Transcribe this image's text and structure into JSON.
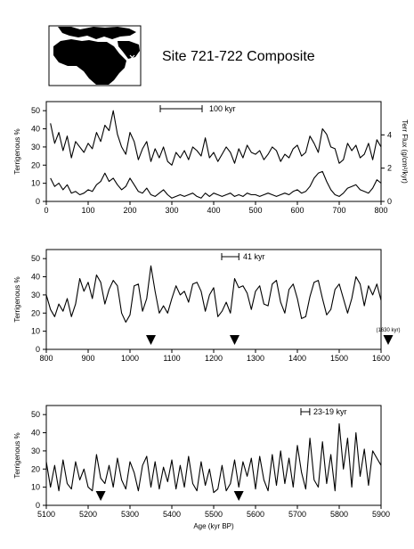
{
  "title": "Site 721-722 Composite",
  "map": {
    "icon": "africa-arabia-map-icon"
  },
  "colors": {
    "line": "#000000",
    "land": "#000000",
    "background": "#ffffff"
  },
  "chart_data": [
    {
      "type": "line",
      "ylabel": "Terrigenous %",
      "y2label": "Terr Flux (g/cm²/kyr)",
      "xlim": [
        0,
        800
      ],
      "ylim": [
        0,
        55
      ],
      "y2lim": [
        0,
        6
      ],
      "xticks": [
        0,
        100,
        200,
        300,
        400,
        500,
        600,
        700,
        800
      ],
      "yticks": [
        0,
        10,
        20,
        30,
        40,
        50
      ],
      "y2ticks": [
        0,
        2,
        4
      ],
      "scalebar": {
        "label": "100 kyr",
        "length": 100
      },
      "series": [
        {
          "axis": "left",
          "x": [
            10,
            20,
            30,
            40,
            50,
            60,
            70,
            80,
            90,
            100,
            110,
            120,
            130,
            140,
            150,
            160,
            170,
            180,
            190,
            200,
            210,
            220,
            230,
            240,
            250,
            260,
            270,
            280,
            290,
            300,
            310,
            320,
            330,
            340,
            350,
            360,
            370,
            380,
            390,
            400,
            410,
            420,
            430,
            440,
            450,
            460,
            470,
            480,
            490,
            500,
            510,
            520,
            530,
            540,
            550,
            560,
            570,
            580,
            590,
            600,
            610,
            620,
            630,
            640,
            650,
            660,
            670,
            680,
            690,
            700,
            710,
            720,
            730,
            740,
            750,
            760,
            770,
            780,
            790,
            800
          ],
          "y": [
            43,
            32,
            38,
            28,
            36,
            24,
            33,
            30,
            27,
            32,
            29,
            38,
            33,
            42,
            39,
            50,
            37,
            30,
            26,
            38,
            33,
            23,
            29,
            33,
            22,
            29,
            24,
            30,
            22,
            20,
            27,
            24,
            28,
            23,
            30,
            28,
            25,
            35,
            24,
            27,
            22,
            26,
            30,
            27,
            21,
            29,
            24,
            31,
            27,
            26,
            28,
            23,
            26,
            30,
            28,
            22,
            26,
            24,
            29,
            31,
            25,
            27,
            36,
            32,
            27,
            40,
            37,
            30,
            29,
            21,
            23,
            32,
            28,
            31,
            24,
            26,
            32,
            23,
            34,
            30
          ]
        },
        {
          "axis": "right",
          "x": [
            10,
            20,
            30,
            40,
            50,
            60,
            70,
            80,
            90,
            100,
            110,
            120,
            130,
            140,
            150,
            160,
            170,
            180,
            190,
            200,
            210,
            220,
            230,
            240,
            250,
            260,
            270,
            280,
            290,
            300,
            310,
            320,
            330,
            340,
            350,
            360,
            370,
            380,
            390,
            400,
            410,
            420,
            430,
            440,
            450,
            460,
            470,
            480,
            490,
            500,
            510,
            520,
            530,
            540,
            550,
            560,
            570,
            580,
            590,
            600,
            610,
            620,
            630,
            640,
            650,
            660,
            670,
            680,
            690,
            700,
            710,
            720,
            730,
            740,
            750,
            760,
            770,
            780,
            790,
            800
          ],
          "y": [
            1.4,
            0.9,
            1.1,
            0.7,
            1.0,
            0.5,
            0.6,
            0.4,
            0.5,
            0.7,
            0.6,
            1.0,
            1.2,
            1.7,
            1.2,
            1.4,
            1.0,
            0.7,
            0.9,
            1.4,
            1.0,
            0.6,
            0.5,
            0.8,
            0.4,
            0.3,
            0.5,
            0.7,
            0.4,
            0.2,
            0.3,
            0.4,
            0.3,
            0.4,
            0.5,
            0.3,
            0.2,
            0.5,
            0.3,
            0.5,
            0.4,
            0.3,
            0.4,
            0.5,
            0.3,
            0.4,
            0.3,
            0.5,
            0.4,
            0.4,
            0.3,
            0.4,
            0.5,
            0.4,
            0.3,
            0.4,
            0.5,
            0.4,
            0.6,
            0.7,
            0.5,
            0.6,
            0.9,
            1.4,
            1.7,
            1.8,
            1.2,
            0.7,
            0.4,
            0.3,
            0.5,
            0.8,
            0.9,
            1.0,
            0.7,
            0.6,
            0.5,
            0.8,
            1.3,
            1.1
          ]
        }
      ]
    },
    {
      "type": "line",
      "ylabel": "Terrigenous %",
      "xlim": [
        800,
        1600
      ],
      "ylim": [
        0,
        55
      ],
      "xticks": [
        800,
        900,
        1000,
        1100,
        1200,
        1300,
        1400,
        1500,
        1600
      ],
      "yticks": [
        0,
        10,
        20,
        30,
        40,
        50
      ],
      "scalebar": {
        "label": "41 kyr",
        "length": 41
      },
      "markers": [
        1050,
        1250,
        1630
      ],
      "annotation": "(1630 kyr)",
      "series": [
        {
          "x": [
            800,
            810,
            820,
            830,
            840,
            850,
            860,
            870,
            880,
            890,
            900,
            910,
            920,
            930,
            940,
            950,
            960,
            970,
            980,
            990,
            1000,
            1010,
            1020,
            1030,
            1040,
            1050,
            1060,
            1070,
            1080,
            1090,
            1100,
            1110,
            1120,
            1130,
            1140,
            1150,
            1160,
            1170,
            1180,
            1190,
            1200,
            1210,
            1220,
            1230,
            1240,
            1250,
            1260,
            1270,
            1280,
            1290,
            1300,
            1310,
            1320,
            1330,
            1340,
            1350,
            1360,
            1370,
            1380,
            1390,
            1400,
            1410,
            1420,
            1430,
            1440,
            1450,
            1460,
            1470,
            1480,
            1490,
            1500,
            1510,
            1520,
            1530,
            1540,
            1550,
            1560,
            1570,
            1580,
            1590,
            1600
          ],
          "y": [
            30,
            22,
            18,
            25,
            21,
            28,
            18,
            25,
            39,
            32,
            37,
            28,
            41,
            37,
            25,
            33,
            38,
            35,
            20,
            15,
            19,
            35,
            36,
            21,
            28,
            46,
            32,
            20,
            24,
            20,
            28,
            35,
            30,
            32,
            26,
            36,
            37,
            32,
            21,
            30,
            34,
            18,
            21,
            26,
            20,
            39,
            34,
            35,
            31,
            22,
            32,
            35,
            25,
            24,
            36,
            38,
            26,
            20,
            33,
            36,
            28,
            17,
            18,
            29,
            37,
            38,
            28,
            19,
            22,
            33,
            36,
            28,
            20,
            28,
            40,
            36,
            24,
            35,
            30,
            36,
            27
          ]
        }
      ]
    },
    {
      "type": "line",
      "ylabel": "Terrigenous %",
      "xlabel": "Age (kyr BP)",
      "xlim": [
        5100,
        5900
      ],
      "ylim": [
        0,
        55
      ],
      "xticks": [
        5100,
        5200,
        5300,
        5400,
        5500,
        5600,
        5700,
        5800,
        5900
      ],
      "yticks": [
        0,
        10,
        20,
        30,
        40,
        50
      ],
      "scalebar": {
        "label": "23-19 kyr",
        "length": 21
      },
      "markers": [
        5230,
        5560
      ],
      "series": [
        {
          "x": [
            5100,
            5110,
            5120,
            5130,
            5140,
            5150,
            5160,
            5170,
            5180,
            5190,
            5200,
            5210,
            5220,
            5230,
            5240,
            5250,
            5260,
            5270,
            5280,
            5290,
            5300,
            5310,
            5320,
            5330,
            5340,
            5350,
            5360,
            5370,
            5380,
            5390,
            5400,
            5410,
            5420,
            5430,
            5440,
            5450,
            5460,
            5470,
            5480,
            5490,
            5500,
            5510,
            5520,
            5530,
            5540,
            5550,
            5560,
            5570,
            5580,
            5590,
            5600,
            5610,
            5620,
            5630,
            5640,
            5650,
            5660,
            5670,
            5680,
            5690,
            5700,
            5710,
            5720,
            5730,
            5740,
            5750,
            5760,
            5770,
            5780,
            5790,
            5800,
            5810,
            5820,
            5830,
            5840,
            5850,
            5860,
            5870,
            5880,
            5890,
            5900
          ],
          "y": [
            24,
            10,
            22,
            8,
            25,
            12,
            9,
            24,
            14,
            20,
            10,
            8,
            28,
            15,
            12,
            22,
            10,
            26,
            14,
            9,
            24,
            18,
            8,
            22,
            27,
            10,
            24,
            9,
            21,
            13,
            25,
            9,
            22,
            10,
            27,
            12,
            8,
            24,
            11,
            20,
            7,
            9,
            22,
            8,
            12,
            25,
            10,
            24,
            16,
            26,
            9,
            27,
            14,
            8,
            28,
            11,
            30,
            12,
            26,
            10,
            33,
            18,
            9,
            37,
            14,
            10,
            35,
            12,
            28,
            8,
            45,
            20,
            37,
            10,
            40,
            16,
            31,
            11,
            30,
            26,
            22
          ]
        }
      ]
    }
  ]
}
